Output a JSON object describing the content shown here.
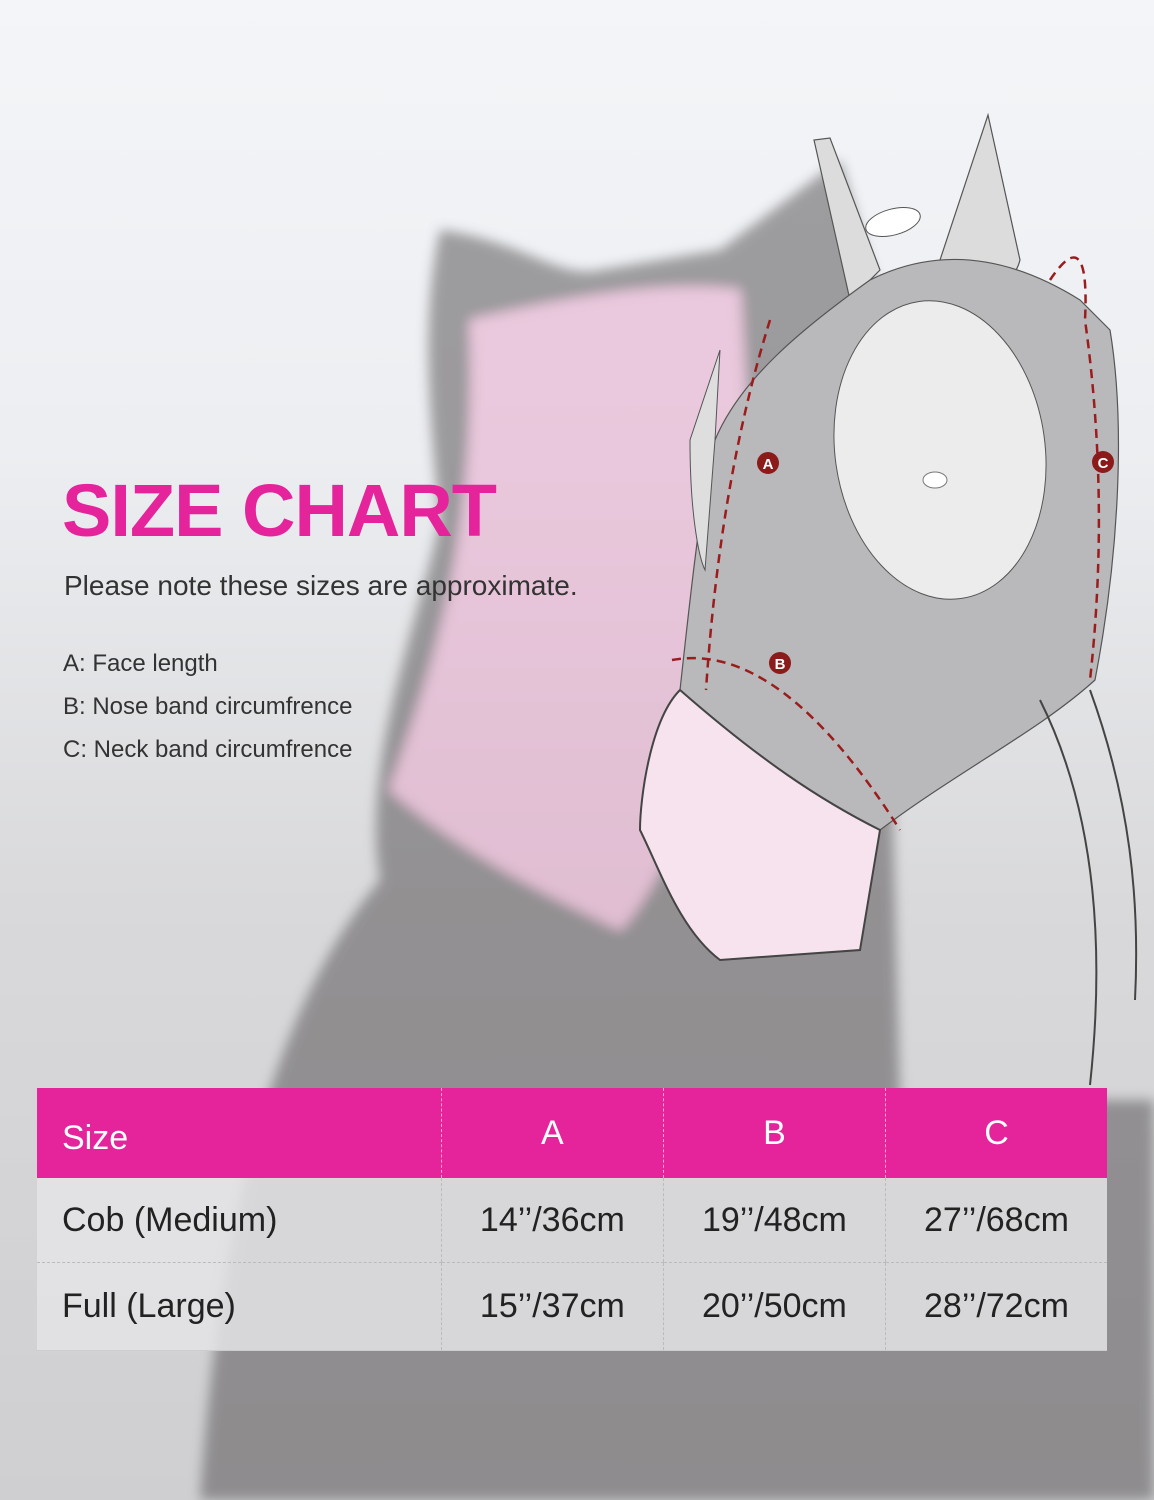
{
  "title": "SIZE CHART",
  "subtitle": "Please note these sizes are approximate.",
  "legend": [
    "A: Face length",
    "B: Nose band circumfrence",
    "C: Neck band circumfrence"
  ],
  "diagram_labels": {
    "a": "A",
    "b": "B",
    "c": "C"
  },
  "table": {
    "headers": [
      "Size",
      "A",
      "B",
      "C"
    ],
    "rows": [
      [
        "Cob (Medium)",
        "14’’/36cm",
        "19’’/48cm",
        "27’’/68cm"
      ],
      [
        "Full (Large)",
        "15’’/37cm",
        "20’’/50cm",
        "28’’/72cm"
      ]
    ]
  },
  "colors": {
    "accent": "#e5239b",
    "marker": "#8b1a1a",
    "mask": "#b9b9bb"
  }
}
